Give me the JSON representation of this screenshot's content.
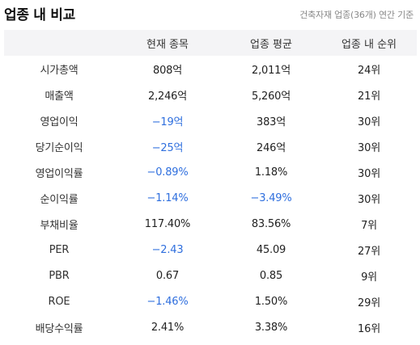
{
  "header": {
    "title": "업종 내 비교",
    "subtitle": "건축자재 업종(36개) 연간 기준"
  },
  "table": {
    "columns": [
      "",
      "현재 종목",
      "업종 평균",
      "업종 내 순위"
    ],
    "rows": [
      {
        "metric": "시가총액",
        "current": "808억",
        "current_negative": false,
        "average": "2,011억",
        "average_negative": false,
        "rank": "24위"
      },
      {
        "metric": "매출액",
        "current": "2,246억",
        "current_negative": false,
        "average": "5,260억",
        "average_negative": false,
        "rank": "21위"
      },
      {
        "metric": "영업이익",
        "current": "−19억",
        "current_negative": true,
        "average": "383억",
        "average_negative": false,
        "rank": "30위"
      },
      {
        "metric": "당기순이익",
        "current": "−25억",
        "current_negative": true,
        "average": "246억",
        "average_negative": false,
        "rank": "30위"
      },
      {
        "metric": "영업이익률",
        "current": "−0.89%",
        "current_negative": true,
        "average": "1.18%",
        "average_negative": false,
        "rank": "30위"
      },
      {
        "metric": "순이익률",
        "current": "−1.14%",
        "current_negative": true,
        "average": "−3.49%",
        "average_negative": true,
        "rank": "30위"
      },
      {
        "metric": "부채비율",
        "current": "117.40%",
        "current_negative": false,
        "average": "83.56%",
        "average_negative": false,
        "rank": "7위"
      },
      {
        "metric": "PER",
        "current": "−2.43",
        "current_negative": true,
        "average": "45.09",
        "average_negative": false,
        "rank": "27위"
      },
      {
        "metric": "PBR",
        "current": "0.67",
        "current_negative": false,
        "average": "0.85",
        "average_negative": false,
        "rank": "9위"
      },
      {
        "metric": "ROE",
        "current": "−1.46%",
        "current_negative": true,
        "average": "1.50%",
        "average_negative": false,
        "rank": "29위"
      },
      {
        "metric": "배당수익률",
        "current": "2.41%",
        "current_negative": false,
        "average": "3.38%",
        "average_negative": false,
        "rank": "16위"
      }
    ]
  },
  "colors": {
    "negative": "#2f6fde",
    "header_background": "#f4f4f6"
  }
}
